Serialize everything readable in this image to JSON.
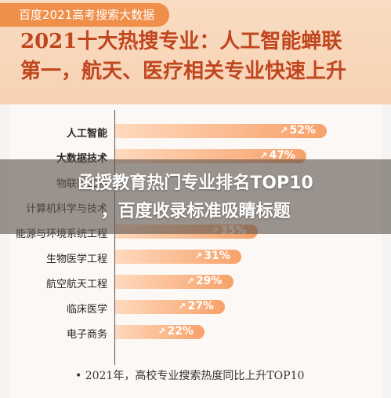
{
  "header": {
    "tag": "百度2021高考搜索大数据",
    "title_line1": "2021十大热搜专业：人工智能蝉联",
    "title_line2": "第一，航天、医疗相关专业快速上升"
  },
  "overlay": {
    "line1": "函授教育热门专业排名TOP10",
    "line2": "，百度收录标准吸睛标题"
  },
  "footer": "• 2021年，高校专业搜索热度同比上升TOP10",
  "colors": {
    "accent": "#ef8f4a",
    "title": "#c0461f",
    "bar_end": "#f7a16a",
    "bar_start": "#ffd9bd"
  },
  "chart_data": {
    "type": "bar",
    "orientation": "horizontal",
    "categories": [
      "人工智能",
      "大数据技术",
      "物联网工程",
      "计算机科学与技术",
      "能源与环境系统工程",
      "生物医学工程",
      "航空航天工程",
      "临床医学",
      "电子商务"
    ],
    "values": [
      52,
      47,
      null,
      null,
      35,
      31,
      29,
      27,
      22
    ],
    "labels": [
      "52%",
      "47%",
      "",
      "",
      "35%",
      "31%",
      "29%",
      "27%",
      "22%"
    ],
    "bold": [
      true,
      true,
      false,
      false,
      false,
      false,
      false,
      false,
      false
    ]
  }
}
